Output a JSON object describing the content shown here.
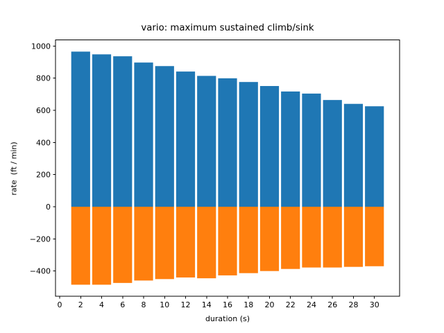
{
  "title": "vario: maximum sustained climb/sink",
  "colors": {
    "climb": "#1f77b4",
    "sink": "#ff7f0e",
    "background": "#ffffff",
    "axis": "#000000"
  },
  "chart_data": {
    "type": "bar",
    "title": "vario: maximum sustained climb/sink",
    "xlabel": "duration (s)",
    "ylabel": "rate  (ft / min)",
    "x": [
      2,
      4,
      6,
      8,
      10,
      12,
      14,
      16,
      18,
      20,
      22,
      24,
      26,
      28,
      30
    ],
    "series": [
      {
        "name": "climb",
        "color": "#1f77b4",
        "values": [
          965,
          948,
          936,
          897,
          875,
          841,
          814,
          799,
          776,
          751,
          717,
          704,
          664,
          640,
          625
        ]
      },
      {
        "name": "sink",
        "color": "#ff7f0e",
        "values": [
          -485,
          -485,
          -474,
          -459,
          -450,
          -440,
          -445,
          -427,
          -413,
          -400,
          -387,
          -378,
          -378,
          -374,
          -370
        ]
      }
    ],
    "bar_width": 1.8,
    "xlim": [
      -0.4,
      32.4
    ],
    "ylim": [
      -557.5,
      1037.5
    ],
    "xticks": {
      "values": [
        0,
        2,
        4,
        6,
        8,
        10,
        12,
        14,
        16,
        18,
        20,
        22,
        24,
        26,
        28,
        30
      ],
      "labels": [
        "0",
        "2",
        "4",
        "6",
        "8",
        "10",
        "12",
        "14",
        "16",
        "18",
        "20",
        "22",
        "24",
        "26",
        "28",
        "30"
      ]
    },
    "yticks": {
      "values": [
        1000,
        800,
        600,
        400,
        200,
        0,
        -200,
        -400
      ],
      "labels": [
        "1000",
        "800",
        "600",
        "400",
        "200",
        "0",
        "−200",
        "−400"
      ]
    },
    "grid": false,
    "legend": null
  }
}
